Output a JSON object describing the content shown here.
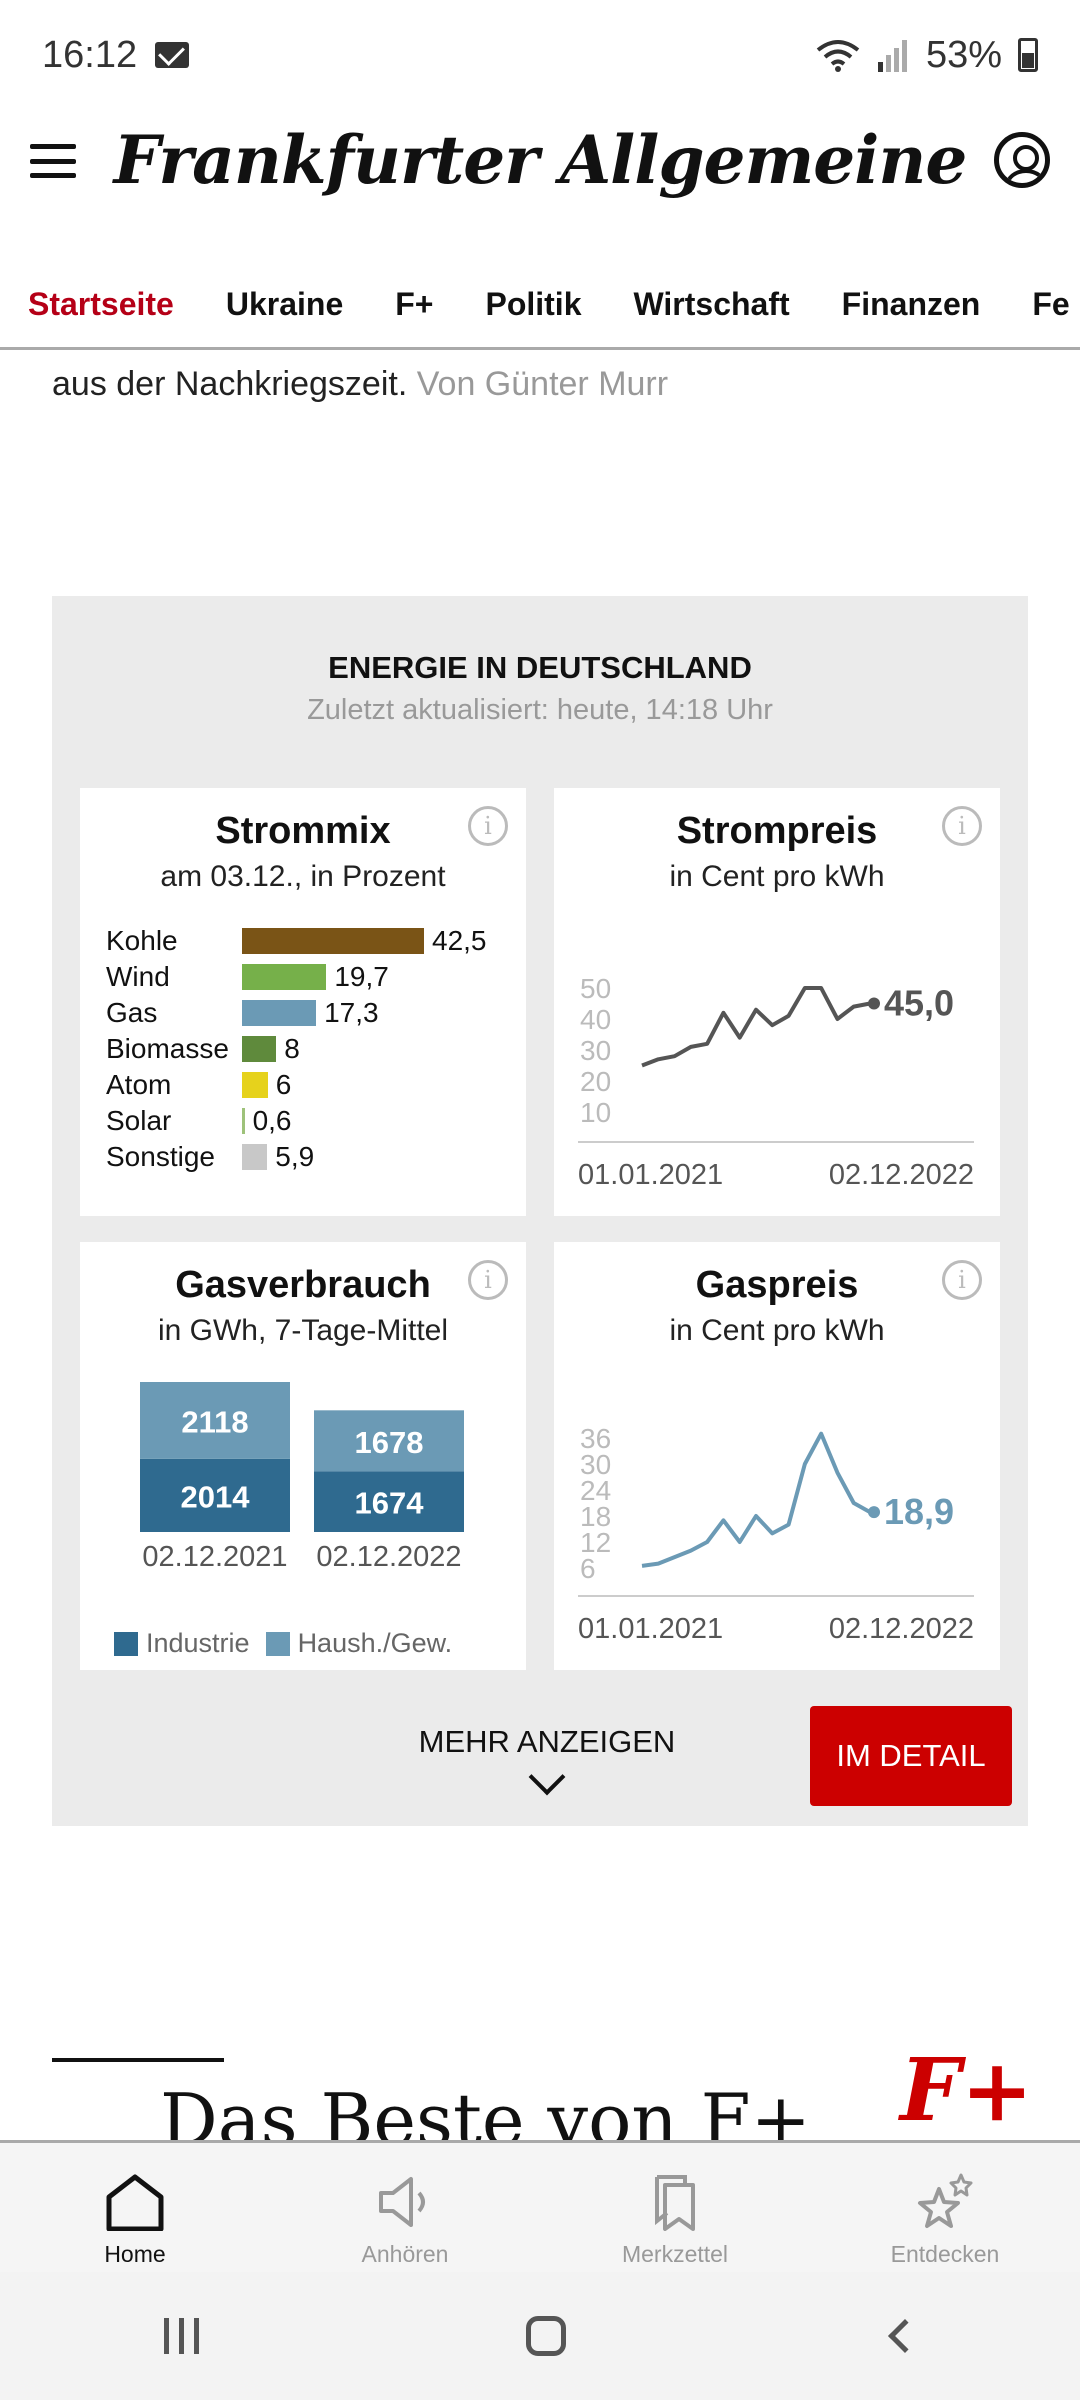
{
  "statusbar": {
    "time": "16:12",
    "battery": "53%"
  },
  "header": {
    "logo": "Frankfurter Allgemeine"
  },
  "nav": {
    "items": [
      "Startseite",
      "Ukraine",
      "F+",
      "Politik",
      "Wirtschaft",
      "Finanzen",
      "Fe"
    ]
  },
  "article": {
    "text": "aus der Nachkriegszeit.",
    "author": "Von Günter Murr"
  },
  "widget": {
    "title": "ENERGIE IN DEUTSCHLAND",
    "subtitle": "Zuletzt aktualisiert: heute, 14:18 Uhr",
    "more_label": "MEHR ANZEIGEN",
    "detail_label": "IM DETAIL",
    "strommix": {
      "title": "Strommix",
      "subtitle": "am 03.12., in Prozent",
      "rows": [
        {
          "label": "Kohle",
          "value": "42,5",
          "num": 42.5,
          "color": "#7a5416"
        },
        {
          "label": "Wind",
          "value": "19,7",
          "num": 19.7,
          "color": "#76b04a"
        },
        {
          "label": "Gas",
          "value": "17,3",
          "num": 17.3,
          "color": "#6b9ab5"
        },
        {
          "label": "Biomasse",
          "value": "8",
          "num": 8,
          "color": "#5f8a3c"
        },
        {
          "label": "Atom",
          "value": "6",
          "num": 6,
          "color": "#e6d21c"
        },
        {
          "label": "Solar",
          "value": "0,6",
          "num": 0.6,
          "color": "#9ec27a"
        },
        {
          "label": "Sonstige",
          "value": "5,9",
          "num": 5.9,
          "color": "#c8c8c8"
        }
      ]
    },
    "strompreis": {
      "title": "Strompreis",
      "subtitle": "in Cent pro kWh",
      "current": "45,0",
      "yticks": [
        "50",
        "40",
        "30",
        "20",
        "10"
      ],
      "xstart": "01.01.2021",
      "xend": "02.12.2022"
    },
    "gasverbrauch": {
      "title": "Gasverbrauch",
      "subtitle": "in GWh, 7-Tage-Mittel",
      "legend_industrie": "Industrie",
      "legend_haush": "Haush./Gew.",
      "color_industrie": "#2f6a8f",
      "color_haush": "#6b9ab5"
    },
    "gaspreis": {
      "title": "Gaspreis",
      "subtitle": "in Cent pro kWh",
      "current": "18,9",
      "yticks": [
        "36",
        "30",
        "24",
        "18",
        "12",
        "6"
      ],
      "xstart": "01.01.2021",
      "xend": "02.12.2022"
    }
  },
  "chart_data": [
    {
      "type": "bar",
      "title": "Strommix",
      "subtitle": "am 03.12., in Prozent",
      "categories": [
        "Kohle",
        "Wind",
        "Gas",
        "Biomasse",
        "Atom",
        "Solar",
        "Sonstige"
      ],
      "values": [
        42.5,
        19.7,
        17.3,
        8,
        6,
        0.6,
        5.9
      ]
    },
    {
      "type": "line",
      "title": "Strompreis",
      "subtitle": "in Cent pro kWh",
      "x": [
        "01.01.2021",
        "01.04.2021",
        "01.07.2021",
        "01.10.2021",
        "01.12.2021",
        "01.02.2022",
        "01.03.2022",
        "01.05.2022",
        "01.06.2022",
        "01.08.2022",
        "15.08.2022",
        "01.09.2022",
        "01.10.2022",
        "01.11.2022",
        "02.12.2022"
      ],
      "values": [
        25,
        27,
        28,
        31,
        32,
        42,
        34,
        43,
        38,
        41,
        50,
        50,
        40,
        44,
        45.0
      ],
      "ylim": [
        10,
        50
      ]
    },
    {
      "type": "bar",
      "title": "Gasverbrauch",
      "subtitle": "in GWh, 7-Tage-Mittel",
      "categories": [
        "02.12.2021",
        "02.12.2022"
      ],
      "series": [
        {
          "name": "Industrie",
          "values": [
            2014,
            1674
          ]
        },
        {
          "name": "Haush./Gew.",
          "values": [
            2118,
            1678
          ]
        }
      ]
    },
    {
      "type": "line",
      "title": "Gaspreis",
      "subtitle": "in Cent pro kWh",
      "x": [
        "01.01.2021",
        "01.06.2021",
        "01.10.2021",
        "15.10.2021",
        "01.12.2021",
        "15.12.2021",
        "01.02.2022",
        "01.03.2022",
        "01.05.2022",
        "01.07.2022",
        "15.08.2022",
        "01.09.2022",
        "01.10.2022",
        "01.11.2022",
        "02.12.2022"
      ],
      "values": [
        6.5,
        7,
        8.5,
        10,
        12,
        17,
        12,
        18,
        14,
        16,
        30,
        37,
        28,
        21,
        18.9
      ],
      "ylim": [
        6,
        36
      ]
    }
  ],
  "beste": {
    "title": "Das Beste von F+",
    "plus": "F+"
  },
  "bottomnav": {
    "items": [
      "Home",
      "Anhören",
      "Merkzettel",
      "Entdecken"
    ]
  }
}
